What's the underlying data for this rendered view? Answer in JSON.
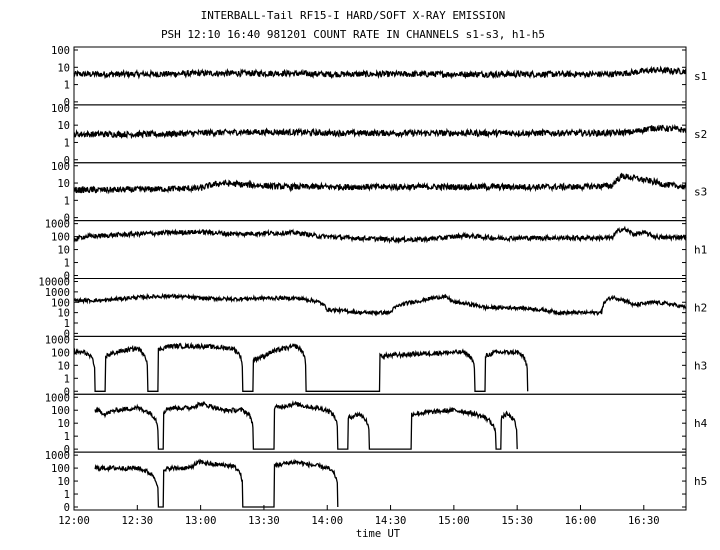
{
  "chart_data": {
    "type": "line",
    "title": "INTERBALL-Tail RF15-I HARD/SOFT X-RAY EMISSION",
    "subtitle": "PSH 12:10 16:40 981201  COUNT RATE IN CHANNELS s1-s3, h1-h5",
    "xlabel": "time UT",
    "x_ticks": [
      "12:00",
      "12:30",
      "13:00",
      "13:30",
      "14:00",
      "14:30",
      "15:00",
      "15:30",
      "16:00",
      "16:30"
    ],
    "x_range_minutes": [
      0,
      290
    ],
    "y_scale": "log",
    "grid": false,
    "panels": [
      {
        "name": "s1",
        "y_ticks": [
          "100",
          "10",
          "1",
          "0"
        ],
        "series": [
          {
            "x": [
              0,
              20,
              40,
              60,
              80,
              100,
              120,
              140,
              160,
              180,
              200,
              220,
              240,
              255,
              265,
              275,
              285,
              290
            ],
            "y": [
              4,
              4,
              4,
              4.5,
              4.5,
              4.5,
              4,
              4,
              4,
              4,
              4,
              4,
              4,
              4,
              5,
              7,
              6,
              6
            ]
          }
        ]
      },
      {
        "name": "s2",
        "y_ticks": [
          "100",
          "10",
          "1",
          "0"
        ],
        "series": [
          {
            "x": [
              0,
              20,
              40,
              60,
              80,
              100,
              120,
              140,
              160,
              180,
              200,
              220,
              240,
              255,
              265,
              275,
              285,
              290
            ],
            "y": [
              3,
              3,
              3,
              3.5,
              4,
              4,
              3.5,
              3.5,
              3.5,
              3.5,
              3.5,
              3.5,
              3.5,
              3.5,
              4,
              7,
              6,
              5
            ]
          }
        ]
      },
      {
        "name": "s3",
        "y_ticks": [
          "100",
          "10",
          "1",
          "0"
        ],
        "series": [
          {
            "x": [
              0,
              20,
              40,
              60,
              70,
              80,
              100,
              120,
              140,
              160,
              180,
              200,
              220,
              240,
              255,
              260,
              270,
              280,
              290
            ],
            "y": [
              4,
              4,
              4.5,
              5,
              10,
              8,
              6,
              6,
              6,
              6,
              6,
              6,
              6,
              6,
              7,
              25,
              15,
              8,
              6
            ]
          }
        ]
      },
      {
        "name": "h1",
        "y_ticks": [
          "1000",
          "100",
          "10",
          "1",
          "0"
        ],
        "series": [
          {
            "x": [
              0,
              5,
              15,
              30,
              45,
              60,
              75,
              90,
              105,
              115,
              130,
              150,
              165,
              175,
              185,
              200,
              220,
              240,
              255,
              260,
              265,
              270,
              275,
              280,
              290
            ],
            "y": [
              60,
              100,
              120,
              160,
              200,
              230,
              160,
              180,
              200,
              110,
              80,
              60,
              60,
              80,
              120,
              75,
              80,
              80,
              80,
              400,
              150,
              200,
              100,
              80,
              100
            ]
          }
        ]
      },
      {
        "name": "h2",
        "y_ticks": [
          "10000",
          "1000",
          "100",
          "10",
          "1",
          "0"
        ],
        "series": [
          {
            "x": [
              0,
              15,
              30,
              45,
              60,
              75,
              90,
              105,
              115,
              120,
              135,
              150,
              165,
              175,
              180,
              195,
              210,
              230,
              250,
              255,
              265,
              275,
              290
            ],
            "y": [
              150,
              150,
              300,
              400,
              250,
              200,
              250,
              250,
              120,
              20,
              10,
              10,
              150,
              350,
              100,
              30,
              30,
              10,
              10,
              300,
              50,
              100,
              30
            ]
          }
        ]
      },
      {
        "name": "h3",
        "y_ticks": [
          "1000",
          "100",
          "10",
          "1",
          "0"
        ],
        "series": [
          {
            "x": [
              0,
              5,
              10,
              20,
              30,
              35,
              45,
              60,
              75,
              80,
              90,
              100,
              105,
              110,
              180,
              185,
              190,
              200,
              205,
              210,
              215
            ],
            "y": [
              100,
              100,
              0,
              100,
              200,
              0,
              300,
              300,
              200,
              0,
              50,
              200,
              300,
              0,
              100,
              100,
              0,
              100,
              100,
              100,
              0
            ]
          }
        ]
      },
      {
        "name": "h4",
        "y_ticks": [
          "1000",
          "100",
          "10",
          "1",
          "0"
        ],
        "series": [
          {
            "x": [
              10,
              15,
              20,
              30,
              40,
              45,
              55,
              60,
              70,
              80,
              85,
              105,
              110,
              120,
              125,
              135,
              140,
              180,
              200,
              205,
              210
            ],
            "y": [
              100,
              50,
              100,
              150,
              0,
              150,
              150,
              300,
              100,
              100,
              0,
              300,
              200,
              100,
              0,
              50,
              0,
              100,
              0,
              50,
              0
            ]
          }
        ]
      },
      {
        "name": "h5",
        "y_ticks": [
          "1000",
          "100",
          "10",
          "1",
          "0"
        ],
        "series": [
          {
            "x": [
              10,
              20,
              30,
              40,
              45,
              55,
              60,
              65,
              75,
              80,
              85,
              105,
              110,
              120,
              125
            ],
            "y": [
              100,
              100,
              100,
              0,
              100,
              100,
              300,
              200,
              150,
              0,
              0,
              300,
              200,
              100,
              0
            ]
          }
        ]
      }
    ]
  }
}
